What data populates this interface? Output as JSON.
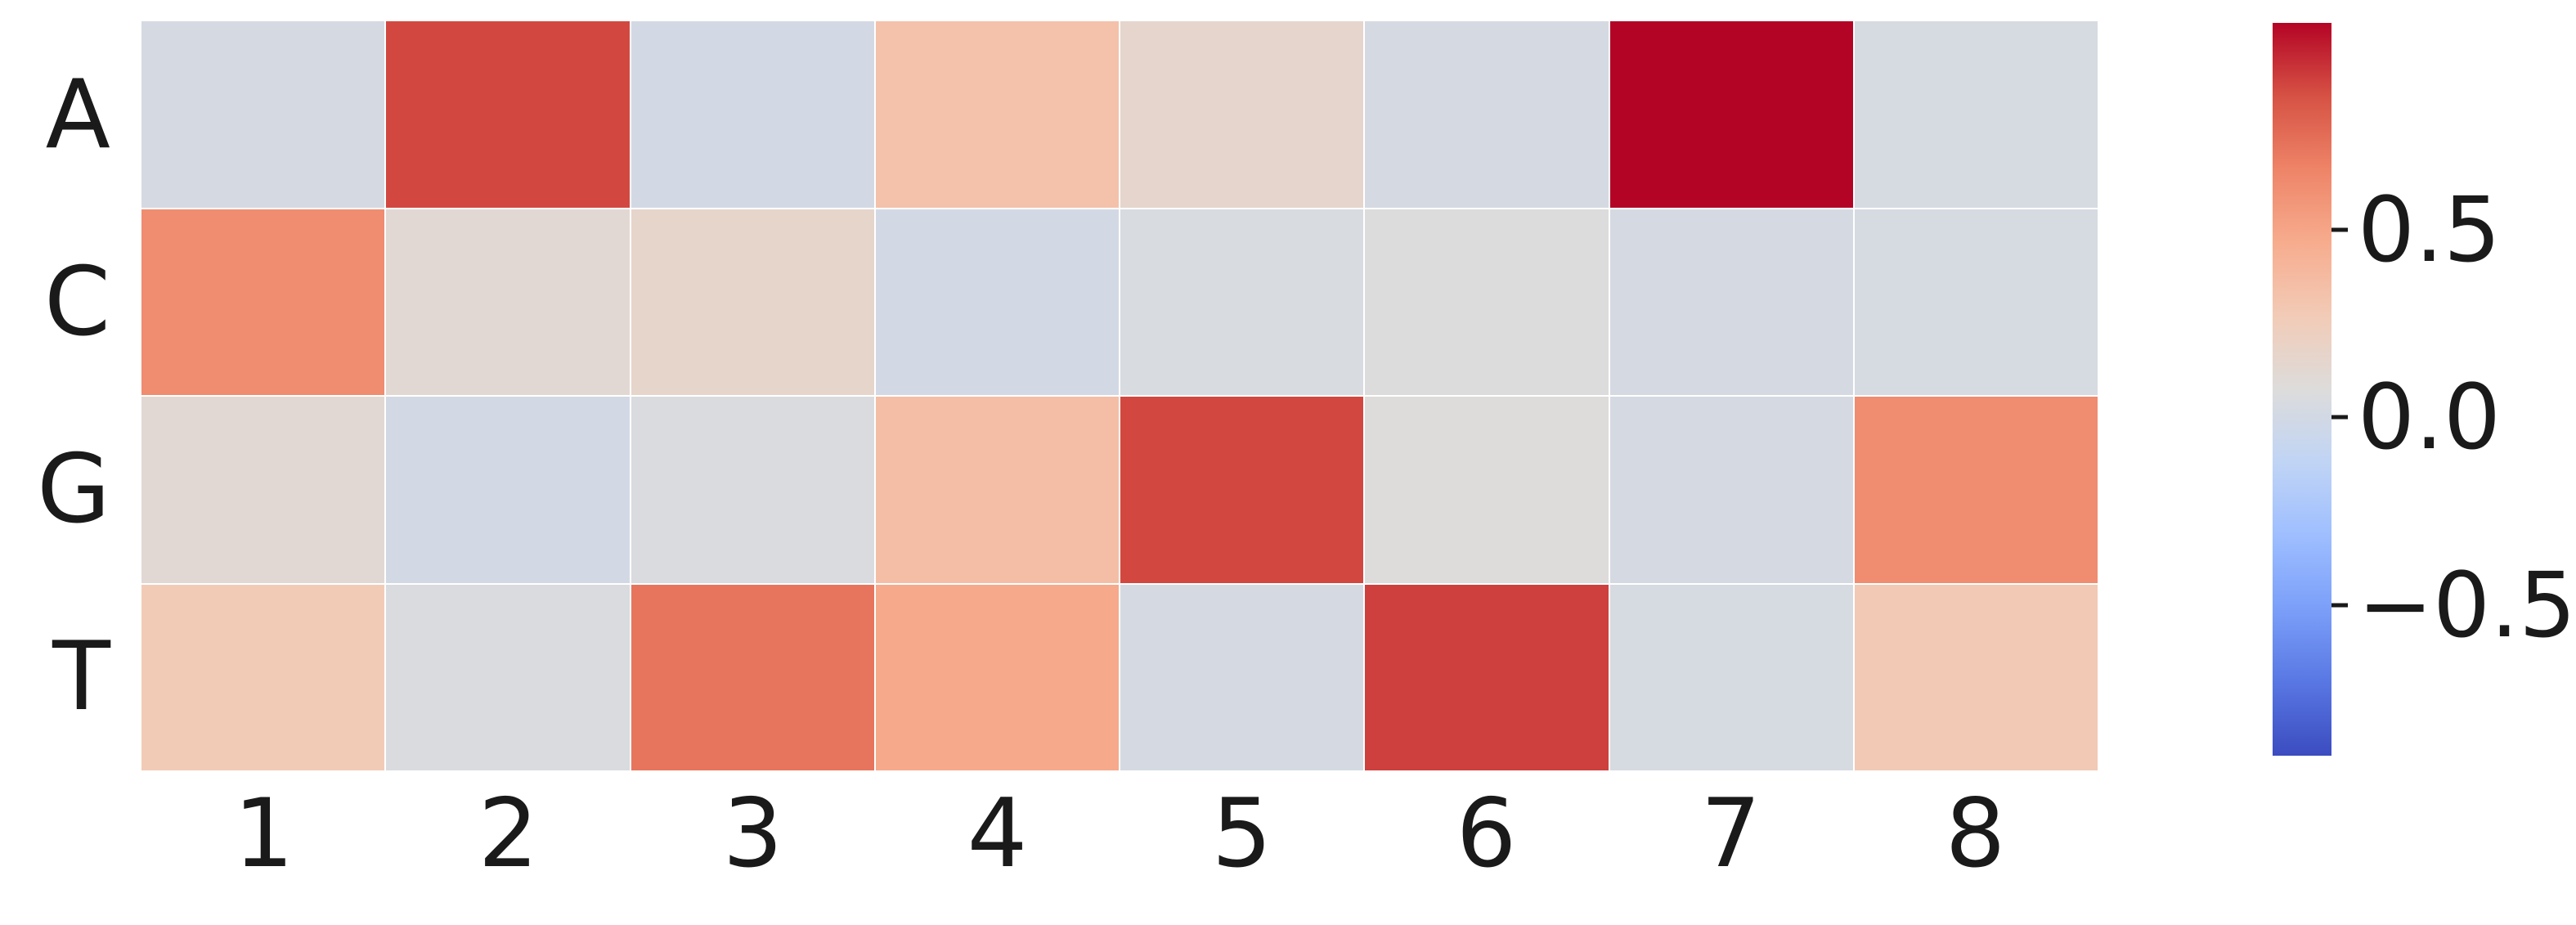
{
  "chart_data": {
    "type": "heatmap",
    "title": "",
    "xlabel": "",
    "ylabel": "",
    "rows": [
      "A",
      "C",
      "G",
      "T"
    ],
    "columns": [
      "1",
      "2",
      "3",
      "4",
      "5",
      "6",
      "7",
      "8"
    ],
    "values": [
      [
        0.02,
        0.88,
        0.01,
        0.33,
        0.15,
        0.02,
        1.05,
        0.03
      ],
      [
        0.62,
        0.12,
        0.16,
        0.01,
        0.04,
        0.07,
        0.02,
        0.03
      ],
      [
        0.12,
        0.01,
        0.05,
        0.35,
        0.88,
        0.08,
        0.02,
        0.62
      ],
      [
        0.27,
        0.05,
        0.72,
        0.48,
        0.02,
        0.9,
        0.03,
        0.28
      ]
    ],
    "vmin": -0.9,
    "vmax": 1.05,
    "colormap": "coolwarm",
    "colormap_anchors": [
      "#3b4cc0",
      "#5977e3",
      "#7b9ff9",
      "#9ebeff",
      "#c0d4f5",
      "#dddcdb",
      "#f2cbb7",
      "#f7ac8e",
      "#ee8468",
      "#d65244",
      "#b40426"
    ],
    "grid": false,
    "legend_position": "right",
    "colorbar": {
      "ticks": [
        0.5,
        0.0,
        -0.5
      ],
      "tick_labels": [
        "0.5",
        "0.0",
        "−0.5"
      ]
    }
  },
  "colors": {
    "background": "#ffffff",
    "label_color": "#1a1a1a",
    "max_red": "#b40426",
    "min_blue": "#3b4cc0",
    "neutral_gray": "#dddcdb",
    "gridline": "#ffffff"
  }
}
